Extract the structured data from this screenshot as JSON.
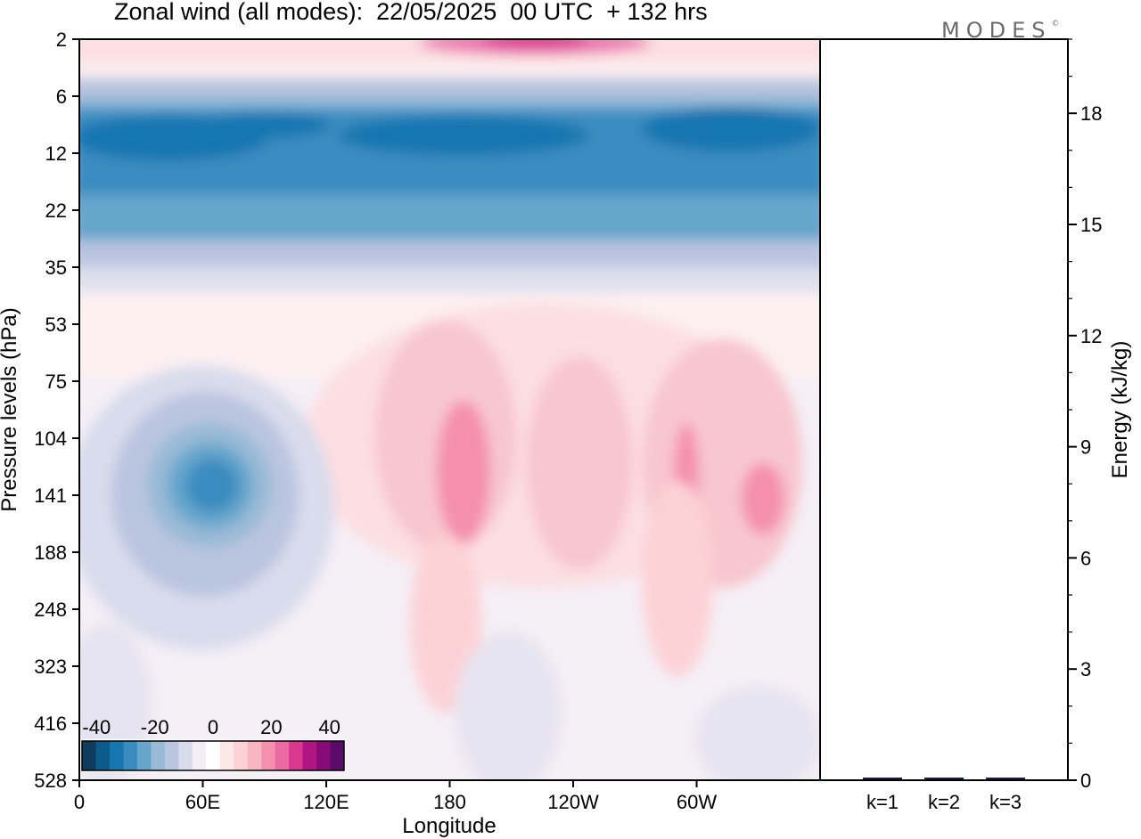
{
  "title": "Zonal wind (all modes):  22/05/2025  00 UTC  + 132 hrs",
  "logo": {
    "text": "MODES",
    "mark": "©"
  },
  "chart_data": [
    {
      "type": "heatmap",
      "xlabel": "Longitude",
      "ylabel": "Pressure levels (hPa)",
      "x_ticks": [
        "0",
        "60E",
        "120E",
        "180",
        "120W",
        "60W"
      ],
      "x_tick_values": [
        0,
        60,
        120,
        180,
        240,
        300
      ],
      "xlim": [
        0,
        360
      ],
      "y_ticks": [
        "2",
        "6",
        "12",
        "22",
        "35",
        "53",
        "75",
        "104",
        "141",
        "188",
        "248",
        "323",
        "416",
        "528"
      ],
      "y_scale": "level index (non-linear pressure)",
      "colorbar": {
        "tick_labels": [
          "-40",
          "-20",
          "0",
          "20",
          "40"
        ],
        "levels": [
          -45,
          -40,
          -35,
          -30,
          -25,
          -20,
          -15,
          -10,
          -5,
          0,
          5,
          10,
          15,
          20,
          25,
          30,
          35,
          40,
          45
        ],
        "colors": [
          "#0e3b5e",
          "#0d5a8c",
          "#1776b0",
          "#3a8cc0",
          "#66a6cc",
          "#98bad6",
          "#bac5e0",
          "#d9dcec",
          "#f2eef6",
          "#ffffff",
          "#fde8e8",
          "#fcd2d6",
          "#f8b6c2",
          "#f48fae",
          "#ec6aa2",
          "#d8398f",
          "#b01582",
          "#860a78",
          "#5a0b6a"
        ]
      },
      "features": [
        {
          "description_level_hPa": "6-22",
          "longitude_range": [
            0,
            360
          ],
          "value_approx": -25
        },
        {
          "description_level_hPa": "104-188",
          "longitude_center": 63,
          "value_approx": -27
        },
        {
          "description_level_hPa": "104-188",
          "longitude_center": 185,
          "value_approx": 17
        },
        {
          "description_level_hPa": "104-188",
          "longitude_center": 327,
          "value_approx": 15
        },
        {
          "description_level_hPa": "2",
          "longitude_center": 225,
          "value_approx": 22
        }
      ]
    },
    {
      "type": "bar",
      "ylabel": "Energy (kJ/kg)",
      "categories": [
        "k=1",
        "k=2",
        "k=3"
      ],
      "values": [
        0.02,
        0.015,
        0.01
      ],
      "ylim": [
        0,
        20
      ],
      "y_ticks": [
        "0",
        "3",
        "6",
        "9",
        "12",
        "15",
        "18"
      ],
      "y_tick_values": [
        0,
        3,
        6,
        9,
        12,
        15,
        18
      ],
      "bar_color": "#1a1a5a"
    }
  ]
}
